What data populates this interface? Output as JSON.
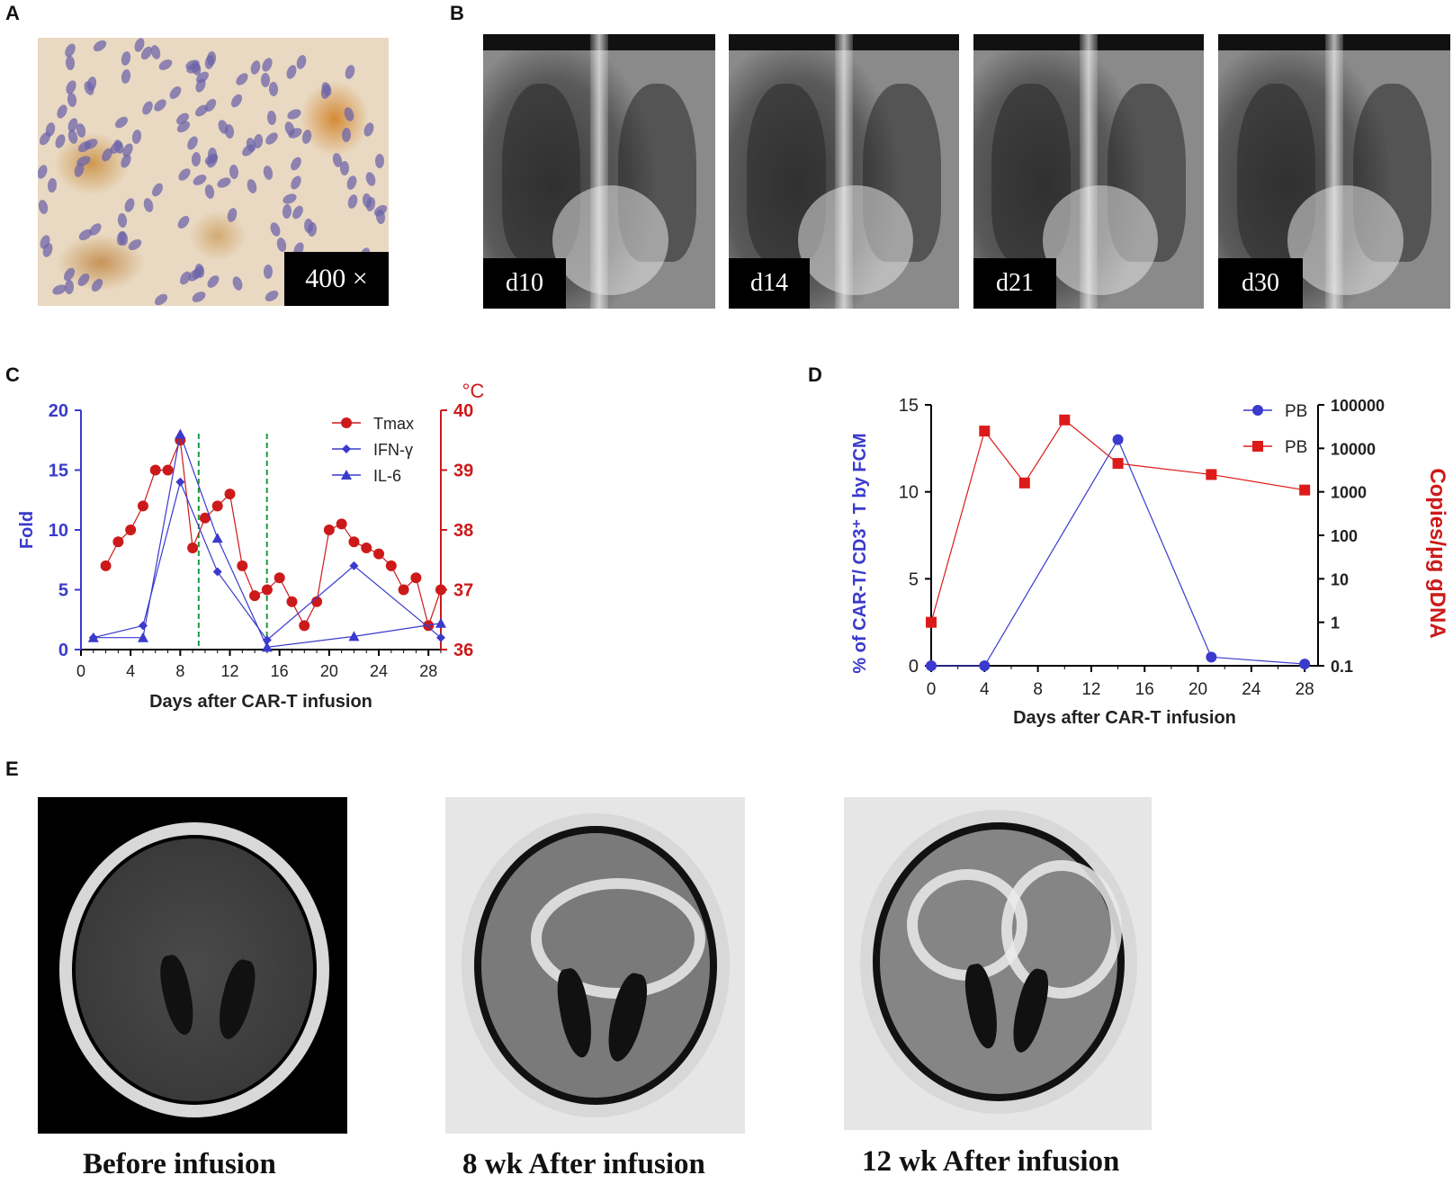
{
  "panels": {
    "a": "A",
    "b": "B",
    "c": "C",
    "d": "D",
    "e": "E"
  },
  "panel_a": {
    "magnification_label": "400 ×"
  },
  "panel_b": {
    "xray_labels": [
      "d10",
      "d14",
      "d21",
      "d30"
    ]
  },
  "panel_e": {
    "captions": [
      "Before infusion",
      "8 wk After infusion",
      "12 wk After infusion"
    ]
  },
  "colors": {
    "blue": "#3a3acc",
    "red": "#cc1a1a",
    "green": "#1a9a3a"
  },
  "chart_data": [
    {
      "type": "line",
      "xlabel": "Days after CAR-T infusion",
      "ylabel": "Fold",
      "y2label": "°C",
      "xlim": [
        0,
        29
      ],
      "xticks": [
        0,
        4,
        8,
        12,
        16,
        20,
        24,
        28
      ],
      "ylim": [
        0,
        20
      ],
      "yticks": [
        0,
        5,
        10,
        15,
        20
      ],
      "y2lim": [
        36,
        40
      ],
      "y2ticks": [
        36,
        37,
        38,
        39,
        40
      ],
      "vlines": [
        10.5,
        16
      ],
      "legend_position": "top-right",
      "series": [
        {
          "name": "Tmax",
          "axis": "right",
          "color": "#cc1a1a",
          "marker": "circle",
          "x": [
            2,
            3,
            4,
            5,
            6,
            7,
            8,
            9,
            10,
            11,
            12,
            13,
            14,
            15,
            16,
            17,
            18,
            19,
            20,
            21,
            22,
            23,
            24,
            25,
            26,
            27,
            28,
            29
          ],
          "y": [
            37.4,
            37.8,
            38.0,
            38.4,
            39.0,
            39.0,
            39.5,
            37.7,
            38.2,
            38.4,
            38.6,
            37.4,
            36.9,
            37.0,
            37.2,
            36.8,
            36.4,
            36.8,
            38.0,
            38.1,
            37.8,
            37.7,
            37.6,
            37.4,
            37.0,
            37.2,
            36.4,
            37.0
          ]
        },
        {
          "name": "IFN-γ",
          "axis": "left",
          "color": "#3a3acc",
          "marker": "diamond",
          "x": [
            1,
            5,
            8,
            11,
            15,
            22,
            29
          ],
          "y": [
            1.0,
            2.0,
            14.0,
            6.5,
            0.8,
            7.0,
            1.0
          ]
        },
        {
          "name": "IL-6",
          "axis": "left",
          "color": "#3a3acc",
          "marker": "triangle",
          "x": [
            1,
            5,
            8,
            11,
            15,
            22,
            29
          ],
          "y": [
            1.0,
            1.0,
            18.0,
            9.3,
            0.2,
            1.1,
            2.2
          ]
        }
      ]
    },
    {
      "type": "line",
      "xlabel": "Days after CAR-T infusion",
      "ylabel": "% of CAR-T/ CD3⁺ T by FCM",
      "y2label": "Copies/μg gDNA",
      "xlim": [
        0,
        29
      ],
      "xticks": [
        0,
        4,
        8,
        12,
        16,
        20,
        24,
        28
      ],
      "ylim": [
        0,
        15
      ],
      "yticks": [
        0,
        5,
        10,
        15
      ],
      "y2scale": "log",
      "y2lim": [
        0.1,
        100000
      ],
      "y2ticks": [
        "0.1",
        "1",
        "10",
        "100",
        "1000",
        "10000",
        "100000"
      ],
      "legend_position": "top-right",
      "series": [
        {
          "name": "PB",
          "axis": "left",
          "color": "#3a3acc",
          "marker": "circle",
          "x": [
            0,
            4,
            14,
            21,
            28
          ],
          "y": [
            0,
            0,
            13.0,
            0.5,
            0.1
          ]
        },
        {
          "name": "PB",
          "axis": "right",
          "color": "#dd1a1a",
          "marker": "square",
          "x": [
            0,
            4,
            7,
            10,
            14,
            21,
            28
          ],
          "y": [
            1,
            25000,
            1600,
            45000,
            4500,
            2500,
            1100
          ]
        }
      ]
    }
  ]
}
